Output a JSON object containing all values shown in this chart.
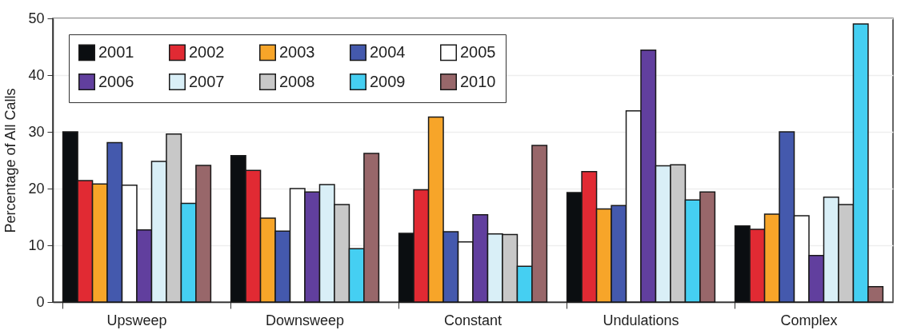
{
  "chart_data": {
    "type": "bar",
    "ylabel": "Percentage of All Calls",
    "categories": [
      "Upsweep",
      "Downsweep",
      "Constant",
      "Undulations",
      "Complex"
    ],
    "series": [
      {
        "name": "2001",
        "color": "#0b0e11",
        "values": [
          30,
          25.8,
          12.1,
          19.3,
          13.4
        ]
      },
      {
        "name": "2002",
        "color": "#e12a33",
        "values": [
          21.4,
          23.2,
          19.8,
          23,
          12.8
        ]
      },
      {
        "name": "2003",
        "color": "#f7a529",
        "values": [
          20.8,
          14.8,
          32.6,
          16.4,
          15.5
        ]
      },
      {
        "name": "2004",
        "color": "#4459ad",
        "values": [
          28.1,
          12.5,
          12.4,
          17,
          30
        ]
      },
      {
        "name": "2005",
        "color": "#ffffff",
        "values": [
          20.6,
          20,
          10.6,
          33.7,
          15.2
        ]
      },
      {
        "name": "2006",
        "color": "#613f9e",
        "values": [
          12.7,
          19.4,
          15.4,
          44.4,
          8.2
        ]
      },
      {
        "name": "2007",
        "color": "#d9eff7",
        "values": [
          24.8,
          20.7,
          12,
          24,
          18.5
        ]
      },
      {
        "name": "2008",
        "color": "#c8c8c8",
        "values": [
          29.6,
          17.2,
          11.9,
          24.2,
          17.2
        ]
      },
      {
        "name": "2009",
        "color": "#45cff2",
        "values": [
          17.4,
          9.4,
          6.3,
          18,
          49
        ]
      },
      {
        "name": "2010",
        "color": "#98676a",
        "values": [
          24.1,
          26.2,
          27.6,
          19.4,
          2.7
        ]
      }
    ],
    "ylim": [
      0,
      50
    ],
    "yticks": [
      0,
      10,
      20,
      30,
      40,
      50
    ],
    "grid": "y",
    "legend": "top left"
  }
}
